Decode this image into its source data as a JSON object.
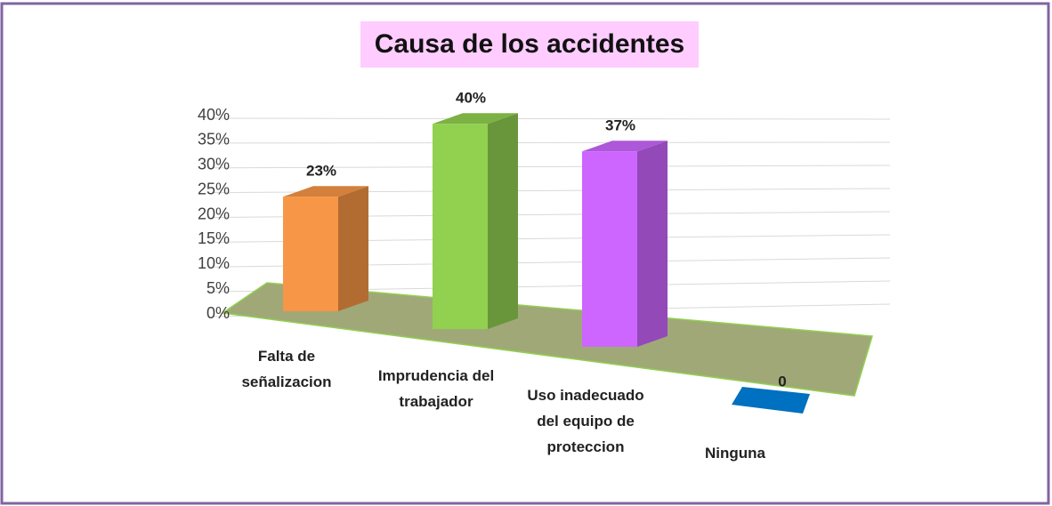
{
  "chart_data": {
    "type": "bar3d",
    "title": "Causa de los accidentes",
    "categories": [
      "Falta de señalizacion",
      "Imprudencia del trabajador",
      "Uso inadecuado del equipo de proteccion",
      "Ninguna"
    ],
    "values": [
      23,
      40,
      37,
      0
    ],
    "value_labels": [
      "23%",
      "40%",
      "37%",
      "0"
    ],
    "colors": [
      "#f79646",
      "#92d050",
      "#cc66ff",
      "#0070c0"
    ],
    "ylim": [
      0,
      40
    ],
    "yticks": [
      {
        "value": 0,
        "label": "0%"
      },
      {
        "value": 5,
        "label": "5%"
      },
      {
        "value": 10,
        "label": "10%"
      },
      {
        "value": 15,
        "label": "15%"
      },
      {
        "value": 20,
        "label": "20%"
      },
      {
        "value": 25,
        "label": "25%"
      },
      {
        "value": 30,
        "label": "30%"
      },
      {
        "value": 35,
        "label": "35%"
      },
      {
        "value": 40,
        "label": "40%"
      }
    ],
    "grid": true
  }
}
